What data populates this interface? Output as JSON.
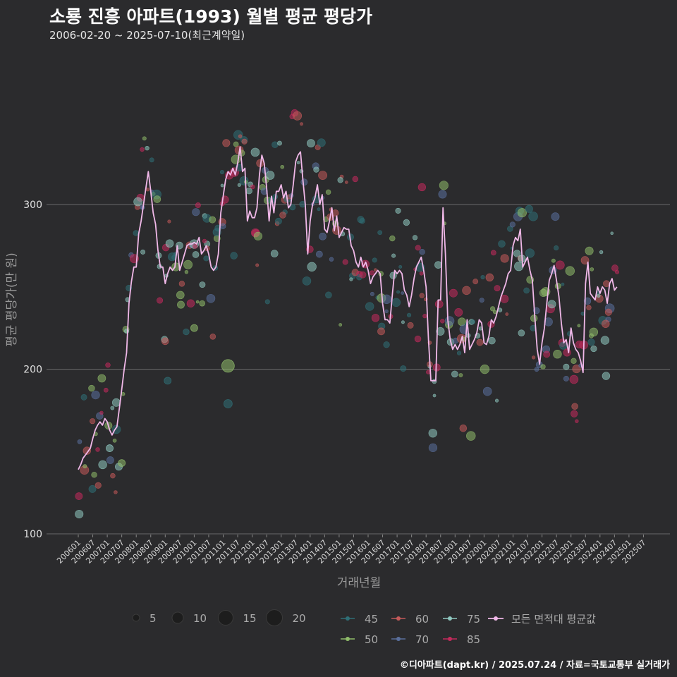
{
  "header": {
    "title": "소룡 진흥 아파트(1993) 월별 평균 평당가",
    "subtitle": "2006-02-20 ~ 2025-07-10(최근계약일)"
  },
  "credit": "©디아파트(dapt.kr) / 2025.07.24 / 자료=국토교통부 실거래가",
  "chart_data": {
    "type": "scatter",
    "title": "소룡 진흥 아파트(1993) 월별 평균 평당가",
    "subtitle": "2006-02-20 ~ 2025-07-10(최근계약일)",
    "xlabel": "거래년월",
    "ylabel": "평균 평당가(만 원)",
    "ylim": [
      100,
      380
    ],
    "yticks": [
      100,
      200,
      300
    ],
    "x_tick_labels": [
      "200601",
      "200607",
      "200701",
      "200707",
      "200801",
      "200807",
      "200901",
      "200907",
      "201001",
      "201007",
      "201101",
      "201107",
      "201201",
      "201207",
      "201301",
      "201307",
      "201401",
      "201407",
      "201501",
      "201507",
      "201601",
      "201607",
      "201701",
      "201707",
      "201801",
      "201807",
      "201901",
      "201907",
      "202001",
      "202007",
      "202101",
      "202107",
      "202201",
      "202207",
      "202301",
      "202307",
      "202401",
      "202407",
      "202501",
      "202507"
    ],
    "size_legend": {
      "values": [
        5,
        10,
        15,
        20
      ]
    },
    "area_legend": [
      {
        "name": "45",
        "color": "#2f6f76"
      },
      {
        "name": "50",
        "color": "#8fbc6a"
      },
      {
        "name": "60",
        "color": "#c45a5a"
      },
      {
        "name": "70",
        "color": "#5a6f9c"
      },
      {
        "name": "75",
        "color": "#8fc8c0"
      },
      {
        "name": "85",
        "color": "#c42a5c"
      }
    ],
    "avg_line_label": "모든 면적대 평균값",
    "avg_line_color": "#f0b8e8",
    "avg_series": {
      "name": "모든 면적대 평균값",
      "values": [
        139,
        142,
        146,
        148,
        150,
        152,
        158,
        163,
        166,
        168,
        166,
        170,
        168,
        163,
        160,
        163,
        165,
        176,
        188,
        200,
        210,
        240,
        253,
        262,
        262,
        282,
        290,
        300,
        310,
        320,
        308,
        295,
        288,
        272,
        262,
        262,
        252,
        258,
        262,
        260,
        262,
        275,
        260,
        265,
        270,
        275,
        276,
        276,
        277,
        276,
        280,
        270,
        272,
        275,
        270,
        262,
        260,
        262,
        270,
        295,
        305,
        315,
        320,
        318,
        322,
        318,
        325,
        335,
        320,
        322,
        290,
        296,
        292,
        292,
        298,
        318,
        330,
        325,
        310,
        290,
        305,
        295,
        308,
        308,
        312,
        304,
        308,
        298,
        300,
        312,
        326,
        330,
        332,
        315,
        300,
        270,
        290,
        300,
        304,
        312,
        300,
        306,
        285,
        283,
        290,
        298,
        284,
        293,
        280,
        283,
        286,
        285,
        285,
        275,
        272,
        265,
        262,
        268,
        262,
        265,
        260,
        252,
        256,
        258,
        260,
        258,
        240,
        230,
        230,
        228,
        245,
        260,
        258,
        260,
        258,
        248,
        245,
        238,
        245,
        255,
        262,
        265,
        268,
        260,
        250,
        218,
        193,
        193,
        193,
        242,
        242,
        298,
        270,
        230,
        218,
        212,
        215,
        212,
        215,
        220,
        210,
        230,
        212,
        215,
        218,
        222,
        230,
        228,
        216,
        215,
        220,
        230,
        228,
        232,
        238,
        244,
        248,
        252,
        258,
        260,
        275,
        280,
        278,
        285,
        262,
        265,
        268,
        260,
        254,
        232,
        212,
        203,
        216,
        225,
        240,
        254,
        258,
        263,
        254,
        244,
        228,
        216,
        218,
        210,
        225,
        216,
        212,
        210,
        205,
        198,
        252,
        265,
        246,
        244,
        242,
        250,
        246,
        250,
        248,
        240,
        252,
        255,
        248,
        250
      ]
    },
    "x_range_months": [
      0,
      234
    ]
  }
}
